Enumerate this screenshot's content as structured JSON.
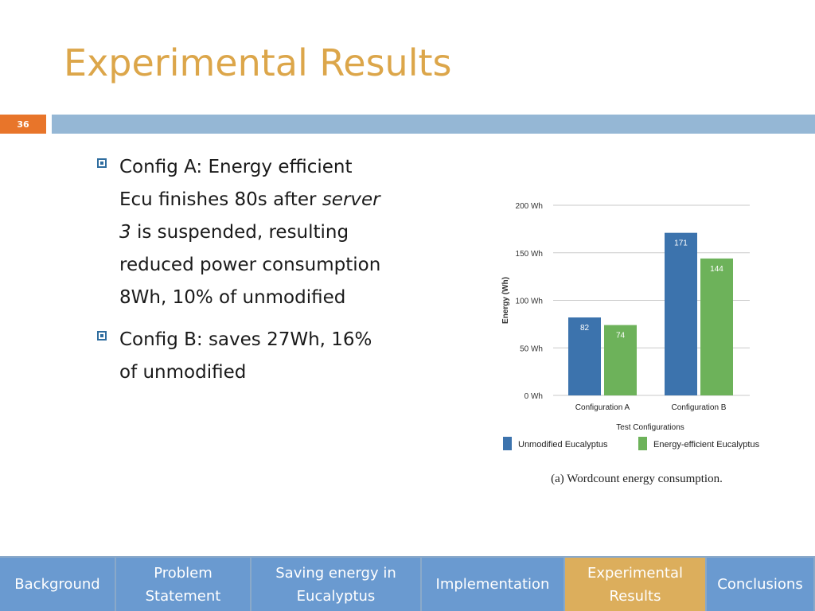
{
  "slide": {
    "title": "Experimental Results",
    "number": "36"
  },
  "bullets": {
    "a_pre": "Config A: Energy efficient Ecu finishes 80s after ",
    "a_em": "server 3",
    "a_post": " is suspended, resulting reduced power consumption 8Wh, 10% of unmodified",
    "b": "Config B: saves 27Wh, 16% of unmodified"
  },
  "colors": {
    "unmodified": "#3c73ad",
    "energy_efficient": "#6db25a",
    "title": "#dca64a",
    "nav_active": "#dcae5c",
    "nav": "#6a9ad0"
  },
  "chart_data": {
    "type": "bar",
    "categories": [
      "Configuration A",
      "Configuration B"
    ],
    "series": [
      {
        "name": "Unmodified Eucalyptus",
        "values": [
          82,
          171
        ]
      },
      {
        "name": "Energy-efficient Eucalyptus",
        "values": [
          74,
          144
        ]
      }
    ],
    "ylim": [
      0,
      200
    ],
    "yticks": [
      0,
      50,
      100,
      150,
      200
    ],
    "ytick_labels": [
      "0 Wh",
      "50 Wh",
      "100 Wh",
      "150 Wh",
      "200 Wh"
    ],
    "ylabel": "Energy (Wh)",
    "xlabel": "Test Configurations",
    "caption": "(a) Wordcount energy consumption.",
    "grid": true,
    "legend_position": "bottom"
  },
  "nav": [
    {
      "label": "Background",
      "active": false
    },
    {
      "label": "Problem\nStatement",
      "active": false
    },
    {
      "label": "Saving energy in\nEucalyptus",
      "active": false
    },
    {
      "label": "Implementation",
      "active": false
    },
    {
      "label": "Experimental\nResults",
      "active": true
    },
    {
      "label": "Conclusions",
      "active": false
    }
  ]
}
